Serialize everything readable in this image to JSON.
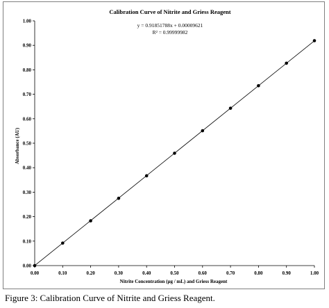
{
  "caption": "Figure 3: Calibration Curve of Nitrite and Griess Reagent.",
  "chart_data": {
    "type": "scatter",
    "title": "Calibration Curve of Nitrite and Griess Reagent",
    "xlabel": "Nitrite Concentration (µg / mL) and Griess Reagent",
    "ylabel": "Absorbance (AU)",
    "xlim": [
      0,
      1
    ],
    "ylim": [
      0,
      1
    ],
    "xticks": [
      "0.00",
      "0.10",
      "0.20",
      "0.30",
      "0.40",
      "0.50",
      "0.60",
      "0.70",
      "0.80",
      "0.90",
      "1.00"
    ],
    "yticks": [
      "0.00",
      "0.10",
      "0.20",
      "0.30",
      "0.40",
      "0.50",
      "0.60",
      "0.70",
      "0.80",
      "0.90",
      "1.00"
    ],
    "grid": false,
    "legend": "none",
    "series": [
      {
        "x": [
          0,
          0.1,
          0.2,
          0.3,
          0.4,
          0.5,
          0.6,
          0.7,
          0.8,
          0.9,
          1.0
        ],
        "y": [
          0.0,
          0.092,
          0.183,
          0.275,
          0.367,
          0.459,
          0.551,
          0.643,
          0.735,
          0.827,
          0.919
        ]
      }
    ],
    "trendline": {
      "slope": 0.91851788,
      "intercept": 9.621e-05
    },
    "annotations": [
      "y = 0.91851788x + 0.00009621",
      "R² = 0.99999982"
    ],
    "colors": {
      "marker": "#000000",
      "line": "#000000"
    }
  }
}
